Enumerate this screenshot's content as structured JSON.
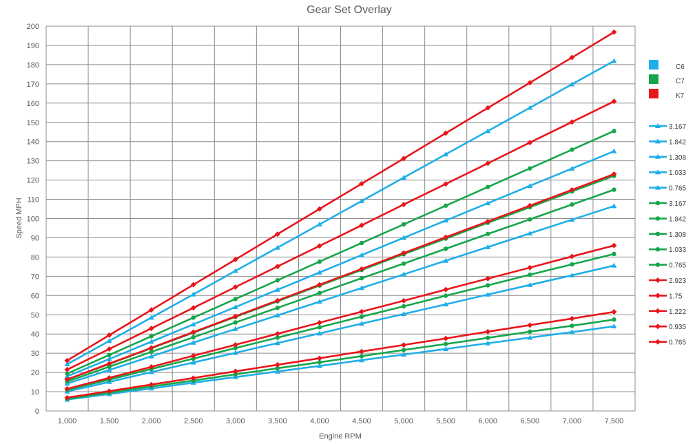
{
  "chart_data": {
    "type": "line",
    "title": "Gear Set Overlay",
    "xlabel": "Engine RPM",
    "ylabel": "Speed MPH",
    "x": [
      1000,
      1500,
      2000,
      2500,
      3000,
      3500,
      4000,
      4500,
      5000,
      5500,
      6000,
      6500,
      7000,
      7500
    ],
    "x_tick_labels": [
      "1,000",
      "1,500",
      "2,000",
      "2,500",
      "3,000",
      "3,500",
      "4,000",
      "4,500",
      "5,000",
      "5,500",
      "6,000",
      "6,500",
      "7,000",
      "7,500"
    ],
    "xlim": [
      1000,
      7500
    ],
    "ylim": [
      0,
      200
    ],
    "y_ticks": [
      0,
      10,
      20,
      30,
      40,
      50,
      60,
      70,
      80,
      90,
      100,
      110,
      120,
      130,
      140,
      150,
      160,
      170,
      180,
      190,
      200
    ],
    "grid": true,
    "legend_position": "right",
    "groups": [
      {
        "name": "C6",
        "color": "#1faee8"
      },
      {
        "name": "C7",
        "color": "#16a64a"
      },
      {
        "name": "K7",
        "color": "#e8161b"
      }
    ],
    "series": [
      {
        "name": "3.167",
        "color": "#1faee8",
        "marker": "triangle",
        "values": [
          5.9,
          8.8,
          11.7,
          14.7,
          17.6,
          20.5,
          23.4,
          26.4,
          29.3,
          32.2,
          35.2,
          38.1,
          41.0,
          44.0
        ]
      },
      {
        "name": "1.842",
        "color": "#1faee8",
        "marker": "triangle",
        "values": [
          10.1,
          15.1,
          20.2,
          25.2,
          30.2,
          35.3,
          40.3,
          45.4,
          50.4,
          55.4,
          60.5,
          65.5,
          70.5,
          75.6
        ]
      },
      {
        "name": "1.308",
        "color": "#1faee8",
        "marker": "triangle",
        "values": [
          14.2,
          21.3,
          28.4,
          35.5,
          42.6,
          49.7,
          56.8,
          63.9,
          71.0,
          78.1,
          85.2,
          92.3,
          99.4,
          106.5
        ]
      },
      {
        "name": "1.033",
        "color": "#1faee8",
        "marker": "triangle",
        "values": [
          18.0,
          27.0,
          36.0,
          45.0,
          54.0,
          63.0,
          72.0,
          81.0,
          90.0,
          99.0,
          108.0,
          117.0,
          126.0,
          135.0
        ]
      },
      {
        "name": "0.765",
        "color": "#1faee8",
        "marker": "triangle",
        "values": [
          24.3,
          36.4,
          48.5,
          60.6,
          72.8,
          84.9,
          97.0,
          109.1,
          121.3,
          133.4,
          145.5,
          157.6,
          169.8,
          181.9
        ]
      },
      {
        "name": "3.167",
        "color": "#16a64a",
        "marker": "circle",
        "values": [
          6.3,
          9.5,
          12.7,
          15.8,
          19.0,
          22.2,
          25.3,
          28.5,
          31.7,
          34.8,
          38.0,
          41.2,
          44.3,
          47.5
        ]
      },
      {
        "name": "1.842",
        "color": "#16a64a",
        "marker": "circle",
        "values": [
          10.9,
          16.3,
          21.8,
          27.2,
          32.7,
          38.1,
          43.5,
          49.0,
          54.4,
          59.9,
          65.3,
          70.8,
          76.2,
          81.6
        ]
      },
      {
        "name": "1.308",
        "color": "#16a64a",
        "marker": "circle",
        "values": [
          15.3,
          23.0,
          30.7,
          38.3,
          46.0,
          53.6,
          61.3,
          69.0,
          76.6,
          84.3,
          92.0,
          99.6,
          107.3,
          115.0
        ]
      },
      {
        "name": "1.033",
        "color": "#16a64a",
        "marker": "circle",
        "values": [
          19.4,
          29.1,
          38.8,
          48.5,
          58.2,
          67.9,
          77.6,
          87.3,
          97.0,
          106.7,
          116.4,
          126.1,
          135.8,
          145.5
        ]
      },
      {
        "name": "0.765",
        "color": "#16a64a",
        "marker": "circle",
        "values": [
          16.3,
          24.4,
          32.6,
          40.7,
          48.9,
          57.0,
          65.2,
          73.3,
          81.5,
          89.6,
          97.8,
          105.9,
          114.1,
          122.2
        ]
      },
      {
        "name": "2.923",
        "color": "#e8161b",
        "marker": "diamond",
        "values": [
          6.9,
          10.3,
          13.7,
          17.1,
          20.6,
          24.0,
          27.4,
          30.9,
          34.3,
          37.7,
          41.2,
          44.6,
          48.0,
          51.5
        ]
      },
      {
        "name": "1.75",
        "color": "#e8161b",
        "marker": "diamond",
        "values": [
          11.5,
          17.2,
          22.9,
          28.7,
          34.4,
          40.1,
          45.9,
          51.6,
          57.3,
          63.1,
          68.8,
          74.5,
          80.3,
          86.0
        ]
      },
      {
        "name": "1.222",
        "color": "#e8161b",
        "marker": "diamond",
        "values": [
          16.4,
          24.6,
          32.8,
          41.0,
          49.2,
          57.4,
          65.6,
          73.8,
          82.1,
          90.3,
          98.5,
          106.7,
          114.9,
          123.1
        ]
      },
      {
        "name": "0.935",
        "color": "#e8161b",
        "marker": "diamond",
        "values": [
          21.5,
          32.2,
          42.9,
          53.6,
          64.4,
          75.1,
          85.8,
          96.5,
          107.3,
          118.0,
          128.7,
          139.5,
          150.2,
          160.9
        ]
      },
      {
        "name": "0.765",
        "color": "#e8161b",
        "marker": "diamond",
        "values": [
          26.2,
          39.4,
          52.5,
          65.6,
          78.7,
          91.9,
          105.0,
          118.1,
          131.2,
          144.4,
          157.5,
          170.6,
          183.7,
          196.9
        ]
      }
    ]
  }
}
